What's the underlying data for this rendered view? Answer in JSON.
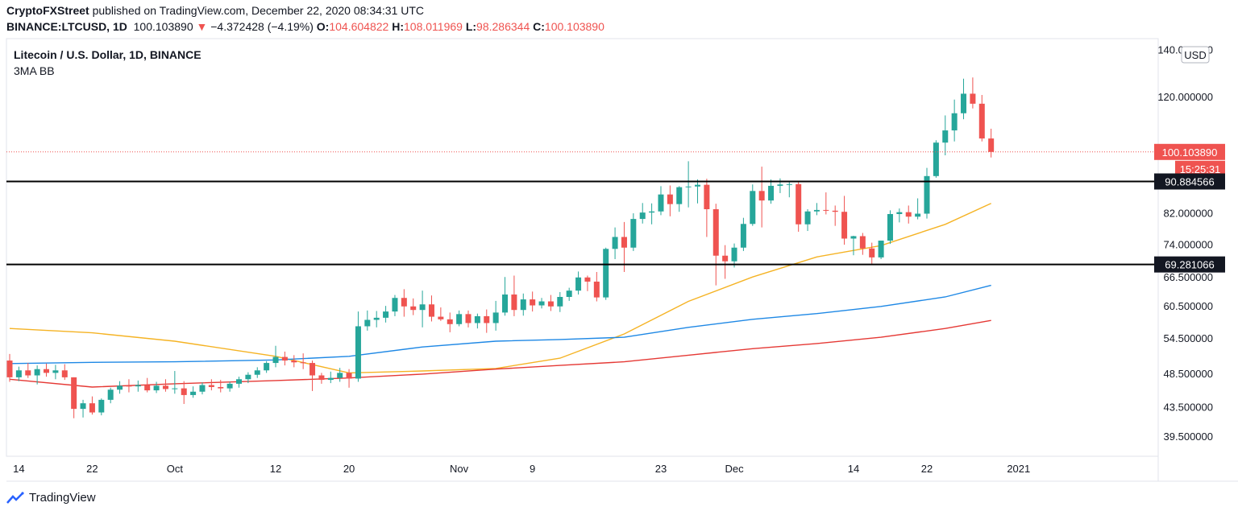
{
  "header": {
    "author": "CryptoFXStreet",
    "published_text": "published on TradingView.com, December 22, 2020 08:34:31 UTC",
    "symbol": "BINANCE:LTCUSD, 1D",
    "last": "100.103890",
    "change": "−4.372428 (−4.19%)",
    "open_label": "O:",
    "open": "104.604822",
    "high_label": "H:",
    "high": "108.011969",
    "low_label": "L:",
    "low": "98.286344",
    "close_label": "C:",
    "close": "100.103890"
  },
  "legend": {
    "title": "Litecoin / U.S. Dollar, 1D, BINANCE",
    "indicator": "3MA BB"
  },
  "footer": {
    "brand": "TradingView"
  },
  "colors": {
    "up": "#26a69a",
    "down": "#ef5350",
    "ma_fast": "#f5b324",
    "ma_mid": "#1e88e5",
    "ma_slow": "#e53935",
    "level": "#000000"
  },
  "chart_data": {
    "type": "candlestick",
    "currency_badge": "USD",
    "price_axis": {
      "scale": "log",
      "ticks": [
        "39.500000",
        "43.500000",
        "48.500000",
        "54.500000",
        "60.500000",
        "66.500000",
        "74.000000",
        "82.000000",
        "90.000000",
        "120.000000",
        "140.000000"
      ],
      "tick_values": [
        39.5,
        43.5,
        48.5,
        54.5,
        60.5,
        66.5,
        74,
        82,
        90,
        120,
        140
      ],
      "range": [
        37,
        145
      ]
    },
    "time_axis": {
      "labels": [
        "14",
        "22",
        "Oct",
        "12",
        "20",
        "Nov",
        "9",
        "23",
        "Dec",
        "14",
        "22",
        "2021"
      ],
      "label_dates": [
        "2020-09-14",
        "2020-09-22",
        "2020-10-01",
        "2020-10-12",
        "2020-10-20",
        "2020-11-01",
        "2020-11-09",
        "2020-11-23",
        "2020-12-01",
        "2020-12-14",
        "2020-12-22",
        "2021-01-01"
      ],
      "start": "2020-09-14",
      "end": "2021-01-05"
    },
    "current_price_label": "100.103890",
    "countdown_label": "15:25:31",
    "horizontal_levels": [
      {
        "value": 90.884566,
        "label": "90.884566"
      },
      {
        "value": 69.281066,
        "label": "69.281066"
      }
    ],
    "candles": [
      {
        "d": "2020-09-13",
        "o": 50.6,
        "h": 51.7,
        "l": 47.2,
        "c": 47.9
      },
      {
        "d": "2020-09-14",
        "o": 47.9,
        "h": 49.6,
        "l": 47.3,
        "c": 49.0
      },
      {
        "d": "2020-09-15",
        "o": 49.0,
        "h": 50.2,
        "l": 47.8,
        "c": 48.2
      },
      {
        "d": "2020-09-16",
        "o": 48.2,
        "h": 49.8,
        "l": 46.8,
        "c": 49.2
      },
      {
        "d": "2020-09-17",
        "o": 49.2,
        "h": 50.1,
        "l": 48.0,
        "c": 48.6
      },
      {
        "d": "2020-09-18",
        "o": 48.6,
        "h": 49.9,
        "l": 47.6,
        "c": 49.0
      },
      {
        "d": "2020-09-19",
        "o": 49.0,
        "h": 50.0,
        "l": 47.5,
        "c": 47.9
      },
      {
        "d": "2020-09-20",
        "o": 47.9,
        "h": 47.9,
        "l": 41.9,
        "c": 43.2
      },
      {
        "d": "2020-09-21",
        "o": 43.2,
        "h": 44.5,
        "l": 42.0,
        "c": 44.0
      },
      {
        "d": "2020-09-22",
        "o": 44.0,
        "h": 45.0,
        "l": 42.4,
        "c": 42.7
      },
      {
        "d": "2020-09-23",
        "o": 42.7,
        "h": 44.7,
        "l": 42.3,
        "c": 44.5
      },
      {
        "d": "2020-09-24",
        "o": 44.5,
        "h": 46.3,
        "l": 44.0,
        "c": 46.0
      },
      {
        "d": "2020-09-25",
        "o": 46.0,
        "h": 47.3,
        "l": 45.4,
        "c": 46.6
      },
      {
        "d": "2020-09-26",
        "o": 46.6,
        "h": 47.6,
        "l": 45.6,
        "c": 46.5
      },
      {
        "d": "2020-09-27",
        "o": 46.5,
        "h": 47.4,
        "l": 45.7,
        "c": 46.7
      },
      {
        "d": "2020-09-28",
        "o": 46.7,
        "h": 47.8,
        "l": 45.6,
        "c": 45.9
      },
      {
        "d": "2020-09-29",
        "o": 45.9,
        "h": 47.2,
        "l": 45.5,
        "c": 46.6
      },
      {
        "d": "2020-09-30",
        "o": 46.6,
        "h": 47.6,
        "l": 45.7,
        "c": 46.1
      },
      {
        "d": "2020-10-01",
        "o": 46.1,
        "h": 48.9,
        "l": 45.4,
        "c": 46.2
      },
      {
        "d": "2020-10-02",
        "o": 46.2,
        "h": 47.3,
        "l": 43.9,
        "c": 45.2
      },
      {
        "d": "2020-10-03",
        "o": 45.2,
        "h": 46.5,
        "l": 44.8,
        "c": 45.7
      },
      {
        "d": "2020-10-04",
        "o": 45.7,
        "h": 47.1,
        "l": 45.3,
        "c": 46.7
      },
      {
        "d": "2020-10-05",
        "o": 46.7,
        "h": 47.6,
        "l": 45.9,
        "c": 46.4
      },
      {
        "d": "2020-10-06",
        "o": 46.4,
        "h": 47.5,
        "l": 45.6,
        "c": 46.2
      },
      {
        "d": "2020-10-07",
        "o": 46.2,
        "h": 47.2,
        "l": 45.7,
        "c": 46.9
      },
      {
        "d": "2020-10-08",
        "o": 46.9,
        "h": 48.0,
        "l": 46.3,
        "c": 47.6
      },
      {
        "d": "2020-10-09",
        "o": 47.6,
        "h": 48.7,
        "l": 47.0,
        "c": 48.3
      },
      {
        "d": "2020-10-10",
        "o": 48.3,
        "h": 49.5,
        "l": 47.8,
        "c": 49.0
      },
      {
        "d": "2020-10-11",
        "o": 49.0,
        "h": 50.5,
        "l": 48.6,
        "c": 50.2
      },
      {
        "d": "2020-10-12",
        "o": 50.2,
        "h": 53.1,
        "l": 49.5,
        "c": 51.2
      },
      {
        "d": "2020-10-13",
        "o": 51.2,
        "h": 52.1,
        "l": 49.8,
        "c": 50.6
      },
      {
        "d": "2020-10-14",
        "o": 50.6,
        "h": 51.5,
        "l": 49.5,
        "c": 50.3
      },
      {
        "d": "2020-10-15",
        "o": 50.3,
        "h": 51.8,
        "l": 49.2,
        "c": 50.2
      },
      {
        "d": "2020-10-16",
        "o": 50.2,
        "h": 50.6,
        "l": 45.8,
        "c": 48.2
      },
      {
        "d": "2020-10-17",
        "o": 48.2,
        "h": 48.6,
        "l": 46.9,
        "c": 47.5
      },
      {
        "d": "2020-10-18",
        "o": 47.5,
        "h": 48.8,
        "l": 47.0,
        "c": 47.8
      },
      {
        "d": "2020-10-19",
        "o": 47.8,
        "h": 49.4,
        "l": 47.2,
        "c": 48.6
      },
      {
        "d": "2020-10-20",
        "o": 48.6,
        "h": 49.2,
        "l": 46.3,
        "c": 47.7
      },
      {
        "d": "2020-10-21",
        "o": 47.7,
        "h": 59.4,
        "l": 47.2,
        "c": 56.6
      },
      {
        "d": "2020-10-22",
        "o": 56.6,
        "h": 59.6,
        "l": 55.8,
        "c": 57.8
      },
      {
        "d": "2020-10-23",
        "o": 57.8,
        "h": 59.5,
        "l": 56.4,
        "c": 58.2
      },
      {
        "d": "2020-10-24",
        "o": 58.2,
        "h": 60.5,
        "l": 57.3,
        "c": 59.4
      },
      {
        "d": "2020-10-25",
        "o": 59.4,
        "h": 62.7,
        "l": 58.5,
        "c": 62.1
      },
      {
        "d": "2020-10-26",
        "o": 62.1,
        "h": 63.9,
        "l": 58.4,
        "c": 60.4
      },
      {
        "d": "2020-10-27",
        "o": 60.4,
        "h": 62.0,
        "l": 58.7,
        "c": 59.7
      },
      {
        "d": "2020-10-28",
        "o": 59.7,
        "h": 63.6,
        "l": 56.4,
        "c": 60.8
      },
      {
        "d": "2020-10-29",
        "o": 60.8,
        "h": 62.6,
        "l": 57.5,
        "c": 58.4
      },
      {
        "d": "2020-10-30",
        "o": 58.4,
        "h": 60.2,
        "l": 57.6,
        "c": 57.9
      },
      {
        "d": "2020-10-31",
        "o": 57.9,
        "h": 59.2,
        "l": 55.5,
        "c": 57.0
      },
      {
        "d": "2020-11-01",
        "o": 57.0,
        "h": 59.6,
        "l": 56.6,
        "c": 58.9
      },
      {
        "d": "2020-11-02",
        "o": 58.9,
        "h": 59.6,
        "l": 56.4,
        "c": 57.2
      },
      {
        "d": "2020-11-03",
        "o": 57.2,
        "h": 59.0,
        "l": 56.2,
        "c": 58.5
      },
      {
        "d": "2020-11-04",
        "o": 58.5,
        "h": 59.8,
        "l": 55.4,
        "c": 57.2
      },
      {
        "d": "2020-11-05",
        "o": 57.2,
        "h": 61.5,
        "l": 55.8,
        "c": 59.2
      },
      {
        "d": "2020-11-06",
        "o": 59.2,
        "h": 66.5,
        "l": 58.6,
        "c": 62.8
      },
      {
        "d": "2020-11-07",
        "o": 62.8,
        "h": 66.8,
        "l": 58.5,
        "c": 59.7
      },
      {
        "d": "2020-11-08",
        "o": 59.7,
        "h": 63.0,
        "l": 58.6,
        "c": 61.8
      },
      {
        "d": "2020-11-09",
        "o": 61.8,
        "h": 63.4,
        "l": 59.4,
        "c": 60.6
      },
      {
        "d": "2020-11-10",
        "o": 60.6,
        "h": 62.1,
        "l": 60.0,
        "c": 61.4
      },
      {
        "d": "2020-11-11",
        "o": 61.4,
        "h": 62.7,
        "l": 59.5,
        "c": 60.4
      },
      {
        "d": "2020-11-12",
        "o": 60.4,
        "h": 63.3,
        "l": 59.3,
        "c": 62.3
      },
      {
        "d": "2020-11-13",
        "o": 62.3,
        "h": 64.2,
        "l": 61.5,
        "c": 63.6
      },
      {
        "d": "2020-11-14",
        "o": 63.6,
        "h": 67.7,
        "l": 62.8,
        "c": 66.4
      },
      {
        "d": "2020-11-15",
        "o": 66.4,
        "h": 66.8,
        "l": 63.5,
        "c": 65.5
      },
      {
        "d": "2020-11-16",
        "o": 65.5,
        "h": 67.6,
        "l": 61.4,
        "c": 62.2
      },
      {
        "d": "2020-11-17",
        "o": 62.2,
        "h": 73.2,
        "l": 61.7,
        "c": 72.9
      },
      {
        "d": "2020-11-18",
        "o": 72.9,
        "h": 78.2,
        "l": 70.5,
        "c": 75.8
      },
      {
        "d": "2020-11-19",
        "o": 75.8,
        "h": 79.6,
        "l": 67.6,
        "c": 73.2
      },
      {
        "d": "2020-11-20",
        "o": 73.2,
        "h": 81.9,
        "l": 72.4,
        "c": 80.4
      },
      {
        "d": "2020-11-21",
        "o": 80.4,
        "h": 84.7,
        "l": 79.2,
        "c": 82.1
      },
      {
        "d": "2020-11-22",
        "o": 82.1,
        "h": 84.6,
        "l": 79.0,
        "c": 82.4
      },
      {
        "d": "2020-11-23",
        "o": 82.4,
        "h": 89.5,
        "l": 81.4,
        "c": 87.1
      },
      {
        "d": "2020-11-24",
        "o": 87.1,
        "h": 89.7,
        "l": 81.1,
        "c": 84.4
      },
      {
        "d": "2020-11-25",
        "o": 84.4,
        "h": 89.5,
        "l": 82.3,
        "c": 89.2
      },
      {
        "d": "2020-11-26",
        "o": 89.2,
        "h": 97.1,
        "l": 83.5,
        "c": 89.4
      },
      {
        "d": "2020-11-27",
        "o": 89.4,
        "h": 91.5,
        "l": 84.6,
        "c": 89.9
      },
      {
        "d": "2020-11-28",
        "o": 89.9,
        "h": 91.7,
        "l": 75.8,
        "c": 83.0
      },
      {
        "d": "2020-11-29",
        "o": 83.0,
        "h": 84.5,
        "l": 64.7,
        "c": 71.3
      },
      {
        "d": "2020-11-30",
        "o": 71.3,
        "h": 73.8,
        "l": 66.1,
        "c": 70.0
      },
      {
        "d": "2020-12-01",
        "o": 70.0,
        "h": 74.2,
        "l": 68.6,
        "c": 73.2
      },
      {
        "d": "2020-12-02",
        "o": 73.2,
        "h": 80.7,
        "l": 72.4,
        "c": 79.1
      },
      {
        "d": "2020-12-03",
        "o": 79.1,
        "h": 90.0,
        "l": 78.6,
        "c": 88.1
      },
      {
        "d": "2020-12-04",
        "o": 88.1,
        "h": 95.4,
        "l": 78.2,
        "c": 85.4
      },
      {
        "d": "2020-12-05",
        "o": 85.4,
        "h": 91.5,
        "l": 84.5,
        "c": 89.6
      },
      {
        "d": "2020-12-06",
        "o": 89.6,
        "h": 91.8,
        "l": 87.5,
        "c": 90.0
      },
      {
        "d": "2020-12-07",
        "o": 90.0,
        "h": 90.7,
        "l": 86.3,
        "c": 90.1
      },
      {
        "d": "2020-12-08",
        "o": 90.1,
        "h": 90.7,
        "l": 77.1,
        "c": 79.0
      },
      {
        "d": "2020-12-09",
        "o": 79.0,
        "h": 83.0,
        "l": 77.3,
        "c": 82.4
      },
      {
        "d": "2020-12-10",
        "o": 82.4,
        "h": 84.7,
        "l": 81.4,
        "c": 82.8
      },
      {
        "d": "2020-12-11",
        "o": 82.8,
        "h": 87.7,
        "l": 81.6,
        "c": 82.6
      },
      {
        "d": "2020-12-12",
        "o": 82.6,
        "h": 84.0,
        "l": 78.6,
        "c": 82.3
      },
      {
        "d": "2020-12-13",
        "o": 82.3,
        "h": 86.7,
        "l": 73.9,
        "c": 75.4
      },
      {
        "d": "2020-12-14",
        "o": 75.4,
        "h": 76.1,
        "l": 71.4,
        "c": 76.0
      },
      {
        "d": "2020-12-15",
        "o": 76.0,
        "h": 76.8,
        "l": 71.5,
        "c": 73.0
      },
      {
        "d": "2020-12-16",
        "o": 73.0,
        "h": 74.4,
        "l": 69.3,
        "c": 70.9
      },
      {
        "d": "2020-12-17",
        "o": 70.9,
        "h": 74.9,
        "l": 70.5,
        "c": 74.9
      },
      {
        "d": "2020-12-18",
        "o": 74.9,
        "h": 82.7,
        "l": 74.1,
        "c": 81.7
      },
      {
        "d": "2020-12-19",
        "o": 81.7,
        "h": 83.2,
        "l": 79.5,
        "c": 82.2
      },
      {
        "d": "2020-12-20",
        "o": 82.2,
        "h": 84.0,
        "l": 79.2,
        "c": 81.0
      },
      {
        "d": "2020-12-21",
        "o": 81.0,
        "h": 86.0,
        "l": 80.3,
        "c": 81.8
      },
      {
        "d": "2020-12-22",
        "o": 81.8,
        "h": 95.0,
        "l": 80.5,
        "c": 92.5
      },
      {
        "d": "2020-12-23",
        "o": 92.5,
        "h": 104.0,
        "l": 92.0,
        "c": 103.2
      },
      {
        "d": "2020-12-24",
        "o": 103.2,
        "h": 112.8,
        "l": 99.0,
        "c": 107.4
      },
      {
        "d": "2020-12-25",
        "o": 107.4,
        "h": 118.8,
        "l": 103.6,
        "c": 113.6
      },
      {
        "d": "2020-12-26",
        "o": 113.6,
        "h": 127.2,
        "l": 111.4,
        "c": 121.1
      },
      {
        "d": "2020-12-27",
        "o": 121.1,
        "h": 127.7,
        "l": 115.4,
        "c": 117.2
      },
      {
        "d": "2020-12-28",
        "o": 117.2,
        "h": 120.6,
        "l": 103.6,
        "c": 104.6
      },
      {
        "d": "2020-12-29",
        "o": 104.6,
        "h": 108.0,
        "l": 98.3,
        "c": 100.1
      }
    ],
    "moving_averages": [
      {
        "color": "#f5b324",
        "points": [
          [
            "2020-09-13",
            56.2
          ],
          [
            "2020-09-22",
            55.4
          ],
          [
            "2020-10-01",
            53.9
          ],
          [
            "2020-10-12",
            51.3
          ],
          [
            "2020-10-20",
            48.6
          ],
          [
            "2020-10-28",
            48.9
          ],
          [
            "2020-11-05",
            49.3
          ],
          [
            "2020-11-12",
            51.0
          ],
          [
            "2020-11-19",
            55.2
          ],
          [
            "2020-11-26",
            61.4
          ],
          [
            "2020-12-03",
            66.5
          ],
          [
            "2020-12-10",
            71.0
          ],
          [
            "2020-12-17",
            73.7
          ],
          [
            "2020-12-24",
            79.0
          ],
          [
            "2020-12-29",
            84.6
          ]
        ]
      },
      {
        "color": "#1e88e5",
        "points": [
          [
            "2020-09-13",
            50.1
          ],
          [
            "2020-09-22",
            50.3
          ],
          [
            "2020-10-01",
            50.4
          ],
          [
            "2020-10-12",
            50.7
          ],
          [
            "2020-10-20",
            51.3
          ],
          [
            "2020-10-28",
            52.9
          ],
          [
            "2020-11-05",
            53.9
          ],
          [
            "2020-11-12",
            54.2
          ],
          [
            "2020-11-19",
            54.6
          ],
          [
            "2020-11-26",
            56.4
          ],
          [
            "2020-12-03",
            57.9
          ],
          [
            "2020-12-10",
            59.0
          ],
          [
            "2020-12-17",
            60.4
          ],
          [
            "2020-12-24",
            62.3
          ],
          [
            "2020-12-29",
            64.7
          ]
        ]
      },
      {
        "color": "#e53935",
        "points": [
          [
            "2020-09-13",
            47.6
          ],
          [
            "2020-09-22",
            46.4
          ],
          [
            "2020-10-01",
            46.9
          ],
          [
            "2020-10-12",
            47.4
          ],
          [
            "2020-10-20",
            47.8
          ],
          [
            "2020-10-28",
            48.4
          ],
          [
            "2020-11-05",
            49.2
          ],
          [
            "2020-11-12",
            49.8
          ],
          [
            "2020-11-19",
            50.4
          ],
          [
            "2020-11-26",
            51.5
          ],
          [
            "2020-12-03",
            52.6
          ],
          [
            "2020-12-10",
            53.5
          ],
          [
            "2020-12-17",
            54.6
          ],
          [
            "2020-12-24",
            56.2
          ],
          [
            "2020-12-29",
            57.7
          ]
        ]
      }
    ]
  }
}
